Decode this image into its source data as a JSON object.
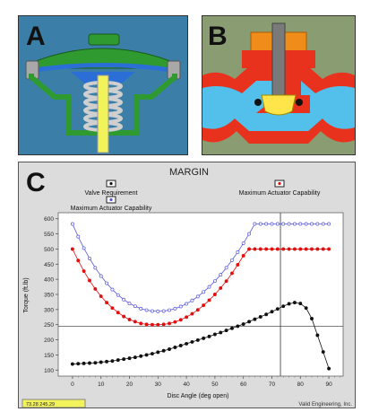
{
  "panels": {
    "a_label": "A",
    "b_label": "B",
    "c_label": "C"
  },
  "colors": {
    "panel_a_bg": "#3b7fa8",
    "panel_b_bg": "#8a9d72",
    "body_green": "#2f9a2f",
    "diaphragm_blue": "#2b6fd6",
    "spring_gray": "#c8c8c8",
    "stem_yellow": "#f2f25a",
    "valve_red": "#e8321e",
    "fluid_blue": "#52c0ea",
    "bonnet_orange": "#f08c1a",
    "disc_yellow": "#ffe44a",
    "chart_bg": "#dcdcdc",
    "series_requirement": "#111111",
    "series_max_red": "#e01010",
    "series_max_blue": "#5555dd"
  },
  "chart_data": {
    "type": "scatter",
    "title": "MARGIN",
    "xlabel": "Disc Angle (deg open)",
    "ylabel": "Torque (ft.lb)",
    "xlim": [
      -5,
      95
    ],
    "ylim": [
      80,
      620
    ],
    "xticks": [
      0,
      10,
      20,
      30,
      40,
      50,
      60,
      70,
      80,
      90
    ],
    "yticks": [
      100,
      150,
      200,
      250,
      300,
      350,
      400,
      450,
      500,
      550,
      600
    ],
    "grid": false,
    "legend": {
      "requirement": "Valve Requirement",
      "max_red": "Maximum Actuator Capability",
      "max_blue": "Maximum Actuator Capability"
    },
    "cursor": {
      "x": 73,
      "y": 245
    },
    "status_text": "73.28      245.29",
    "footer_text": "Valid Engineering, Inc.",
    "series": [
      {
        "name": "Valve Requirement",
        "color": "#111111",
        "x": [
          0,
          2,
          4,
          6,
          8,
          10,
          12,
          14,
          16,
          18,
          20,
          22,
          24,
          26,
          28,
          30,
          32,
          34,
          36,
          38,
          40,
          42,
          44,
          46,
          48,
          50,
          52,
          54,
          56,
          58,
          60,
          62,
          64,
          66,
          68,
          70,
          72,
          74,
          76,
          78,
          80,
          82,
          84,
          86,
          88,
          90
        ],
        "y": [
          120,
          121,
          122,
          123,
          124,
          126,
          128,
          130,
          133,
          136,
          139,
          142,
          146,
          150,
          154,
          159,
          164,
          169,
          175,
          181,
          187,
          193,
          199,
          205,
          211,
          218,
          224,
          231,
          238,
          245,
          252,
          260,
          268,
          276,
          284,
          293,
          302,
          311,
          319,
          323,
          320,
          305,
          270,
          215,
          160,
          105
        ]
      },
      {
        "name": "Maximum Actuator Capability",
        "color": "#e01010",
        "x": [
          0,
          2,
          4,
          6,
          8,
          10,
          12,
          14,
          16,
          18,
          20,
          22,
          24,
          26,
          28,
          30,
          32,
          34,
          36,
          38,
          40,
          42,
          44,
          46,
          48,
          50,
          52,
          54,
          56,
          58,
          60,
          62,
          64,
          66,
          68,
          70,
          72,
          74,
          76,
          78,
          80,
          82,
          84,
          86,
          88,
          90
        ],
        "y": [
          500,
          462,
          427,
          396,
          368,
          344,
          323,
          305,
          290,
          277,
          267,
          260,
          254,
          251,
          250,
          250,
          251,
          254,
          259,
          266,
          275,
          286,
          299,
          314,
          331,
          350,
          371,
          394,
          420,
          448,
          478,
          500,
          500,
          500,
          500,
          500,
          500,
          500,
          500,
          500,
          500,
          500,
          500,
          500,
          500,
          500
        ]
      },
      {
        "name": "Maximum Actuator Capability",
        "color": "#5555dd",
        "x": [
          0,
          2,
          4,
          6,
          8,
          10,
          12,
          14,
          16,
          18,
          20,
          22,
          24,
          26,
          28,
          30,
          32,
          34,
          36,
          38,
          40,
          42,
          44,
          46,
          48,
          50,
          52,
          54,
          56,
          58,
          60,
          62,
          64,
          66,
          68,
          70,
          72,
          74,
          76,
          78,
          80,
          82,
          84,
          86,
          88,
          90
        ],
        "y": [
          583,
          541,
          503,
          469,
          438,
          411,
          387,
          366,
          348,
          333,
          320,
          311,
          303,
          298,
          295,
          294,
          295,
          298,
          303,
          310,
          319,
          330,
          343,
          358,
          375,
          394,
          415,
          438,
          463,
          490,
          519,
          550,
          583,
          583,
          583,
          583,
          583,
          583,
          583,
          583,
          583,
          583,
          583,
          583,
          583,
          583
        ]
      }
    ]
  }
}
